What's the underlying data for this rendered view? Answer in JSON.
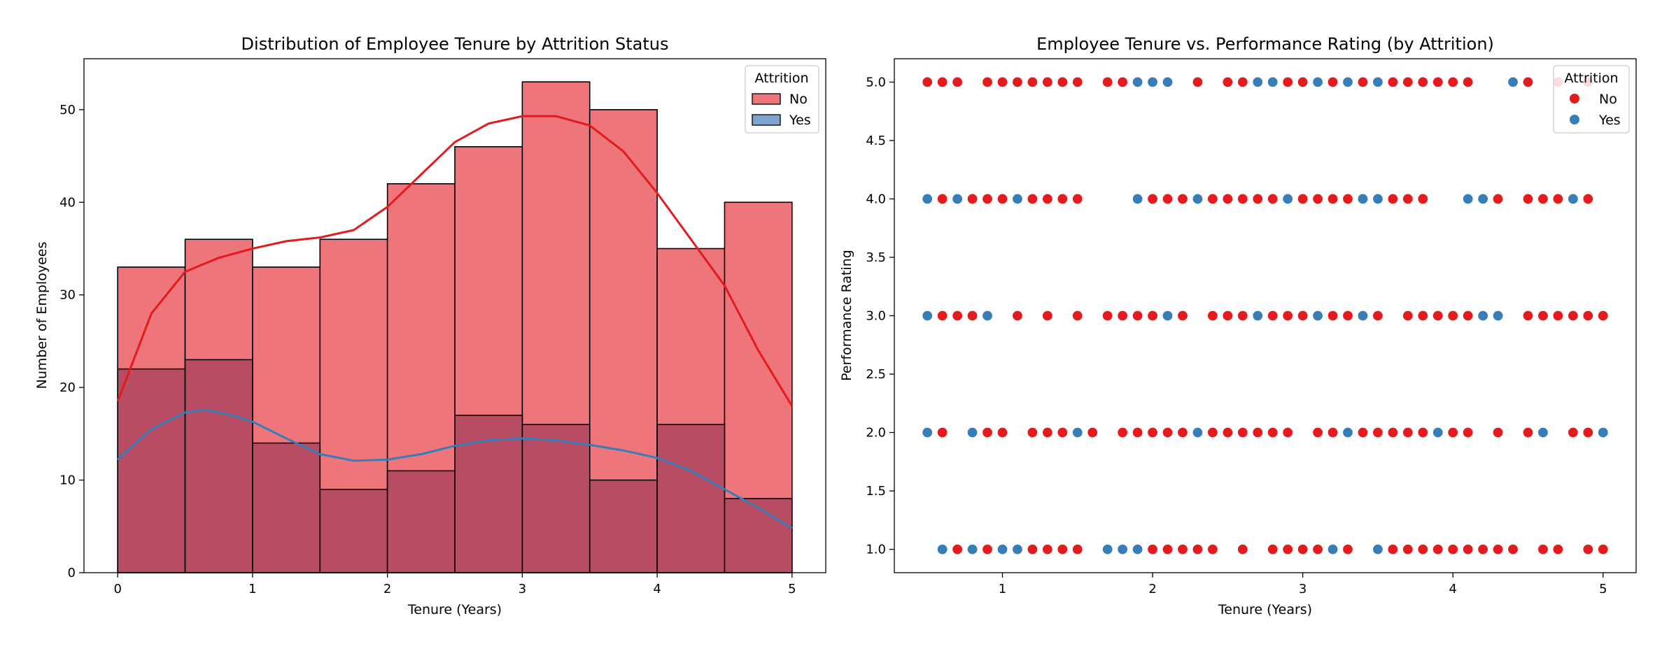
{
  "colors": {
    "no": "#e41a1c",
    "yes": "#377eb8",
    "hist_no_fill": "#ee7579",
    "hist_yes_fill": "#b95468",
    "hist_overlap_fill": "#b74c62"
  },
  "chart_data": [
    {
      "type": "histogram",
      "title": "Distribution of Employee Tenure by Attrition Status",
      "xlabel": "Tenure (Years)",
      "ylabel": "Number of Employees",
      "xlim": [
        -0.25,
        5.25
      ],
      "ylim": [
        0,
        55.5
      ],
      "xticks": [
        0,
        1,
        2,
        3,
        4,
        5
      ],
      "yticks": [
        0,
        10,
        20,
        30,
        40,
        50
      ],
      "bin_edges": [
        0,
        0.5,
        1.0,
        1.5,
        2.0,
        2.5,
        3.0,
        3.5,
        4.0,
        4.5,
        5.0
      ],
      "series": [
        {
          "name": "No",
          "counts": [
            33,
            36,
            33,
            36,
            42,
            46,
            53,
            50,
            35,
            40
          ],
          "kde": [
            [
              0,
              18.5
            ],
            [
              0.25,
              28
            ],
            [
              0.5,
              32.5
            ],
            [
              0.75,
              34
            ],
            [
              1.0,
              35
            ],
            [
              1.25,
              35.8
            ],
            [
              1.5,
              36.2
            ],
            [
              1.75,
              37
            ],
            [
              2.0,
              39.5
            ],
            [
              2.25,
              43
            ],
            [
              2.5,
              46.5
            ],
            [
              2.75,
              48.5
            ],
            [
              3.0,
              49.3
            ],
            [
              3.25,
              49.3
            ],
            [
              3.5,
              48.3
            ],
            [
              3.75,
              45.5
            ],
            [
              4.0,
              41
            ],
            [
              4.25,
              36
            ],
            [
              4.5,
              31
            ],
            [
              4.75,
              24
            ],
            [
              5.0,
              18
            ]
          ]
        },
        {
          "name": "Yes",
          "counts": [
            22,
            23,
            14,
            9,
            11,
            17,
            16,
            10,
            16,
            8
          ],
          "kde": [
            [
              0,
              12.2
            ],
            [
              0.25,
              15.5
            ],
            [
              0.5,
              17.3
            ],
            [
              0.65,
              17.6
            ],
            [
              0.85,
              17
            ],
            [
              1.0,
              16.3
            ],
            [
              1.25,
              14.5
            ],
            [
              1.5,
              12.8
            ],
            [
              1.75,
              12.1
            ],
            [
              2.0,
              12.2
            ],
            [
              2.25,
              12.8
            ],
            [
              2.5,
              13.7
            ],
            [
              2.75,
              14.3
            ],
            [
              3.0,
              14.5
            ],
            [
              3.25,
              14.3
            ],
            [
              3.5,
              13.8
            ],
            [
              3.75,
              13.2
            ],
            [
              4.0,
              12.4
            ],
            [
              4.25,
              11
            ],
            [
              4.5,
              9
            ],
            [
              4.75,
              7
            ],
            [
              5.0,
              4.8
            ]
          ]
        }
      ],
      "legend": {
        "title": "Attrition",
        "placement": "top-right",
        "entries": [
          "No",
          "Yes"
        ]
      }
    },
    {
      "type": "scatter",
      "title": "Employee Tenure vs. Performance Rating (by Attrition)",
      "xlabel": "Tenure (Years)",
      "ylabel": "Performance Rating",
      "xlim": [
        0.28,
        5.22
      ],
      "ylim": [
        0.8,
        5.2
      ],
      "xticks": [
        1,
        2,
        3,
        4,
        5
      ],
      "yticks": [
        1.0,
        1.5,
        2.0,
        2.5,
        3.0,
        3.5,
        4.0,
        4.5,
        5.0
      ],
      "series": [
        {
          "name": "No",
          "points": {
            "5": [
              0.5,
              0.6,
              0.7,
              0.9,
              1.0,
              1.1,
              1.2,
              1.3,
              1.4,
              1.5,
              1.7,
              1.8,
              2.3,
              2.5,
              2.6,
              2.9,
              3.0,
              3.2,
              3.4,
              3.6,
              3.7,
              3.8,
              3.9,
              4.0,
              4.1,
              4.5,
              4.7,
              4.9
            ],
            "4": [
              0.6,
              0.8,
              0.9,
              1.0,
              1.2,
              1.3,
              1.4,
              1.5,
              2.0,
              2.1,
              2.2,
              2.4,
              2.5,
              2.6,
              2.7,
              2.8,
              3.0,
              3.1,
              3.2,
              3.3,
              3.5,
              3.6,
              3.7,
              3.8,
              4.3,
              4.5,
              4.6,
              4.7,
              4.9
            ],
            "3": [
              0.6,
              0.7,
              0.8,
              1.1,
              1.3,
              1.5,
              1.7,
              1.8,
              1.9,
              2.0,
              2.2,
              2.4,
              2.5,
              2.6,
              2.8,
              2.9,
              3.0,
              3.2,
              3.3,
              3.5,
              3.7,
              3.8,
              3.9,
              4.0,
              4.1,
              4.5,
              4.6,
              4.7,
              4.8,
              4.9,
              5.0
            ],
            "2": [
              0.6,
              0.9,
              1.0,
              1.2,
              1.3,
              1.4,
              1.6,
              1.8,
              1.9,
              2.0,
              2.1,
              2.2,
              2.4,
              2.5,
              2.6,
              2.7,
              2.8,
              2.9,
              3.1,
              3.2,
              3.4,
              3.5,
              3.6,
              3.7,
              3.8,
              3.9,
              4.0,
              4.1,
              4.3,
              4.5,
              4.8,
              4.9
            ],
            "1": [
              0.7,
              0.9,
              1.1,
              1.2,
              1.3,
              1.4,
              1.5,
              1.8,
              2.0,
              2.1,
              2.2,
              2.3,
              2.4,
              2.6,
              2.8,
              2.9,
              3.0,
              3.1,
              3.3,
              3.6,
              3.7,
              3.8,
              3.9,
              4.0,
              4.1,
              4.2,
              4.3,
              4.4,
              4.6,
              4.7,
              4.9,
              5.0
            ]
          }
        },
        {
          "name": "Yes",
          "points": {
            "5": [
              1.9,
              2.0,
              2.1,
              2.7,
              2.8,
              3.1,
              3.3,
              3.5,
              4.4
            ],
            "4": [
              0.5,
              0.7,
              1.1,
              1.9,
              2.3,
              2.9,
              3.4,
              3.5,
              4.1,
              4.2,
              4.8
            ],
            "3": [
              0.5,
              0.9,
              2.1,
              2.7,
              3.1,
              3.4,
              4.2,
              4.3
            ],
            "2": [
              0.5,
              0.8,
              1.5,
              2.3,
              3.3,
              3.9,
              4.6,
              5.0
            ],
            "1": [
              0.6,
              0.8,
              1.0,
              1.1,
              1.7,
              1.8,
              1.9,
              3.2,
              3.5
            ]
          }
        }
      ],
      "legend": {
        "title": "Attrition",
        "placement": "top-right",
        "entries": [
          "No",
          "Yes"
        ]
      }
    }
  ]
}
